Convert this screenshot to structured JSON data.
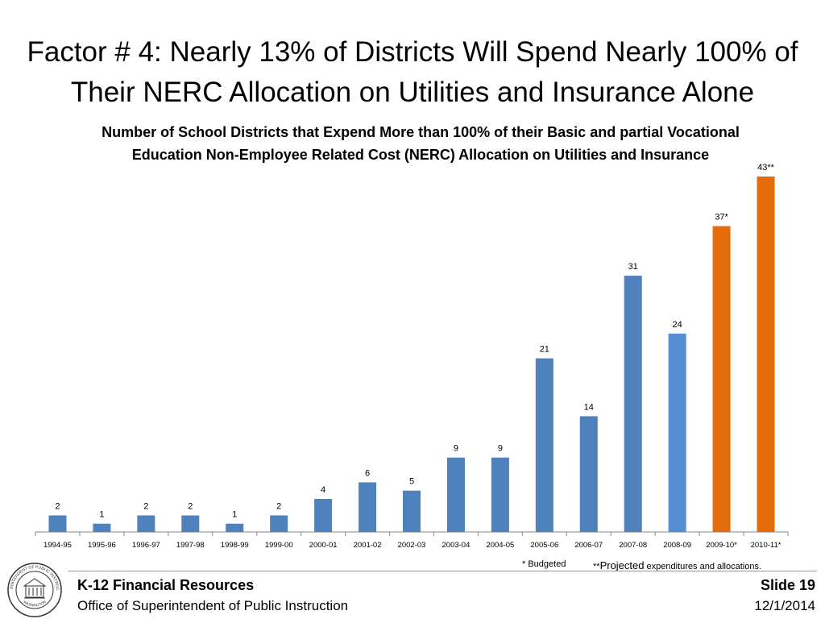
{
  "slide": {
    "title": "Factor # 4:  Nearly 13% of Districts Will Spend Nearly 100% of Their NERC Allocation on Utilities and Insurance Alone"
  },
  "chart_data": {
    "type": "bar",
    "title": "Number of School Districts that Expend More than 100% of their Basic and partial Vocational Education Non-Employee Related Cost (NERC) Allocation on Utilities and Insurance",
    "xlabel": "",
    "ylabel": "",
    "ylim": [
      0,
      45
    ],
    "grid": false,
    "categories": [
      "1994-95",
      "1995-96",
      "1996-97",
      "1997-98",
      "1998-99",
      "1999-00",
      "2000-01",
      "2001-02",
      "2002-03",
      "2003-04",
      "2004-05",
      "2005-06",
      "2006-07",
      "2007-08",
      "2008-09",
      "2009-10*",
      "2010-11*"
    ],
    "values": [
      2,
      1,
      2,
      2,
      1,
      2,
      4,
      6,
      5,
      9,
      9,
      21,
      14,
      31,
      24,
      37,
      43
    ],
    "data_labels": [
      "2",
      "1",
      "2",
      "2",
      "1",
      "2",
      "4",
      "6",
      "5",
      "9",
      "9",
      "21",
      "14",
      "31",
      "24",
      "37*",
      "43**"
    ],
    "colors": [
      "#4f81bd",
      "#4f81bd",
      "#4f81bd",
      "#4f81bd",
      "#4f81bd",
      "#4f81bd",
      "#4f81bd",
      "#4f81bd",
      "#4f81bd",
      "#4f81bd",
      "#4f81bd",
      "#4f81bd",
      "#4f81bd",
      "#4f81bd",
      "#558ed5",
      "#e46c0a",
      "#e46c0a"
    ]
  },
  "footnotes": {
    "budgeted": "* Budgeted",
    "projected_prefix": "**",
    "projected_word": "Projected",
    "projected_rest": " expenditures and allocations."
  },
  "footer": {
    "org_title": "K-12 Financial Resources",
    "org_subtitle": "Office of Superintendent of Public Instruction",
    "slide_label": "Slide 19",
    "date": "12/1/2014",
    "seal_text_top": "SUPERINTENDENT OF PUBLIC INSTRUCTION",
    "seal_text_bottom": "WASHINGTON"
  }
}
